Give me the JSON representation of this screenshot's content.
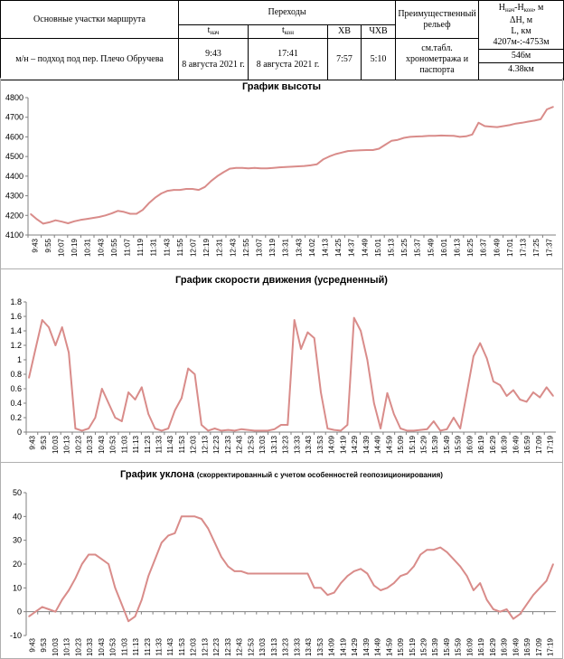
{
  "header": {
    "sections_label": "Основные участки маршрута",
    "transitions_label": "Переходы",
    "t_start_label": "t",
    "t_start_sub": "нач",
    "t_end_label": "t",
    "t_end_sub": "кон",
    "xv_label": "ХВ",
    "chxv_label": "ЧХВ",
    "relief_label": "Преимущественный рельеф",
    "h_label": "Н",
    "h_sub1": "нач",
    "h_dash": "-Н",
    "h_sub2": "кон",
    "h_unit": ", м",
    "dh_label": "ΔН, м",
    "l_label": "L, км",
    "row": {
      "section": "м/н – подход под пер. Плечо Обручева",
      "t_start_time": "9:43",
      "t_start_date": "8 августа 2021 г.",
      "t_end_time": "17:41",
      "t_end_date": "8 августа 2021 г.",
      "xv": "7:57",
      "chxv": "5:10",
      "relief": "см.табл. хронометража и паспорта",
      "h_range": "4207м-:-4753м",
      "dh": "546м",
      "length": "4.38км"
    }
  },
  "colors": {
    "line": "#d98c8a",
    "axis": "#808080",
    "grid": "#d9d9d9"
  },
  "chart_data": [
    {
      "type": "line",
      "title": "График высоты",
      "ylim": [
        4100,
        4800
      ],
      "yticks": [
        4100,
        4200,
        4300,
        4400,
        4500,
        4600,
        4700,
        4800
      ],
      "grid": false,
      "xlabels": [
        "9:43",
        "9:55",
        "10:07",
        "10:19",
        "10:31",
        "10:43",
        "10:55",
        "11:07",
        "11:19",
        "11:31",
        "11:43",
        "11:55",
        "12:07",
        "12:19",
        "12:31",
        "12:43",
        "12:55",
        "13:07",
        "13:19",
        "13:31",
        "13:43",
        "14:02",
        "14:13",
        "14:25",
        "14:37",
        "14:49",
        "15:01",
        "15:13",
        "15:25",
        "15:37",
        "15:49",
        "16:01",
        "16:13",
        "16:25",
        "16:37",
        "16:49",
        "17:01",
        "17:13",
        "17:25",
        "17:37"
      ],
      "values": [
        4207,
        4180,
        4158,
        4165,
        4175,
        4168,
        4160,
        4170,
        4177,
        4182,
        4187,
        4192,
        4200,
        4210,
        4223,
        4218,
        4208,
        4208,
        4228,
        4262,
        4290,
        4312,
        4325,
        4330,
        4330,
        4335,
        4335,
        4330,
        4345,
        4375,
        4400,
        4420,
        4438,
        4442,
        4442,
        4440,
        4442,
        4440,
        4440,
        4442,
        4445,
        4447,
        4448,
        4450,
        4452,
        4455,
        4460,
        4485,
        4500,
        4512,
        4520,
        4528,
        4530,
        4532,
        4533,
        4533,
        4540,
        4560,
        4580,
        4585,
        4595,
        4600,
        4602,
        4603,
        4605,
        4605,
        4607,
        4606,
        4605,
        4600,
        4603,
        4612,
        4672,
        4655,
        4652,
        4650,
        4655,
        4660,
        4668,
        4672,
        4678,
        4683,
        4690,
        4740,
        4753
      ]
    },
    {
      "type": "line",
      "title": "График скорости движения (усредненный)",
      "ylim": [
        0,
        1.8
      ],
      "yticks": [
        "0",
        "0.2",
        "0.4",
        "0.6",
        "0.8",
        "1",
        "1.2",
        "1.4",
        "1.6",
        "1.8"
      ],
      "grid": false,
      "xlabels": [
        "9:43",
        "9:53",
        "10:03",
        "10:13",
        "10:23",
        "10:33",
        "10:43",
        "10:53",
        "11:03",
        "11:13",
        "11:23",
        "11:33",
        "11:43",
        "11:53",
        "12:03",
        "12:13",
        "12:23",
        "12:33",
        "12:43",
        "12:53",
        "13:03",
        "13:13",
        "13:23",
        "13:33",
        "13:43",
        "13:53",
        "14:09",
        "14:19",
        "14:29",
        "14:39",
        "14:49",
        "14:59",
        "15:09",
        "15:19",
        "15:29",
        "15:39",
        "15:49",
        "15:59",
        "16:09",
        "16:19",
        "16:29",
        "16:39",
        "16:49",
        "16:59",
        "17:09",
        "17:19"
      ],
      "values": [
        0.75,
        1.15,
        1.55,
        1.45,
        1.2,
        1.45,
        1.1,
        0.05,
        0.02,
        0.05,
        0.2,
        0.6,
        0.4,
        0.2,
        0.15,
        0.55,
        0.45,
        0.62,
        0.25,
        0.05,
        0.02,
        0.05,
        0.3,
        0.47,
        0.88,
        0.8,
        0.1,
        0.02,
        0.05,
        0.02,
        0.03,
        0.02,
        0.04,
        0.03,
        0.02,
        0.02,
        0.02,
        0.04,
        0.1,
        0.1,
        1.55,
        1.15,
        1.38,
        1.3,
        0.55,
        0.05,
        0.03,
        0.02,
        0.1,
        1.58,
        1.4,
        1.0,
        0.4,
        0.05,
        0.54,
        0.25,
        0.05,
        0.02,
        0.02,
        0.03,
        0.04,
        0.15,
        0.02,
        0.04,
        0.2,
        0.05,
        0.55,
        1.05,
        1.23,
        1.02,
        0.7,
        0.65,
        0.5,
        0.58,
        0.45,
        0.42,
        0.55,
        0.48,
        0.62,
        0.5
      ]
    },
    {
      "type": "line",
      "title": "График уклона",
      "title_note": "(скорректированный  с учетом  особенностей  геопозиционирования)",
      "ylim": [
        -10,
        50
      ],
      "yticks": [
        -10,
        0,
        10,
        20,
        30,
        40,
        50
      ],
      "grid": false,
      "xlabels": [
        "9:43",
        "9:53",
        "10:03",
        "10:13",
        "10:23",
        "10:33",
        "10:43",
        "10:53",
        "11:03",
        "11:13",
        "11:23",
        "11:33",
        "11:43",
        "11:53",
        "12:03",
        "12:13",
        "12:23",
        "12:33",
        "12:43",
        "12:53",
        "13:03",
        "13:13",
        "13:23",
        "13:33",
        "13:43",
        "13:53",
        "14:09",
        "14:19",
        "14:29",
        "14:39",
        "14:49",
        "14:59",
        "15:09",
        "15:19",
        "15:29",
        "15:39",
        "15:49",
        "15:59",
        "16:09",
        "16:19",
        "16:29",
        "16:39",
        "16:49",
        "16:59",
        "17:09",
        "17:19"
      ],
      "values": [
        -2,
        0,
        2,
        1,
        0,
        5,
        9,
        14,
        20,
        24,
        24,
        22,
        20,
        10,
        3,
        -4,
        -2,
        5,
        15,
        22,
        29,
        32,
        33,
        40,
        40,
        40,
        39,
        35,
        29,
        23,
        19,
        17,
        17,
        16,
        16,
        16,
        16,
        16,
        16,
        16,
        16,
        16,
        16,
        10,
        10,
        7,
        8,
        12,
        15,
        17,
        18,
        16,
        11,
        9,
        10,
        12,
        15,
        16,
        19,
        24,
        26,
        26,
        27,
        25,
        22,
        19,
        15,
        9,
        12,
        5,
        1,
        0,
        1,
        -3,
        -1,
        3,
        7,
        10,
        13,
        20
      ]
    }
  ]
}
